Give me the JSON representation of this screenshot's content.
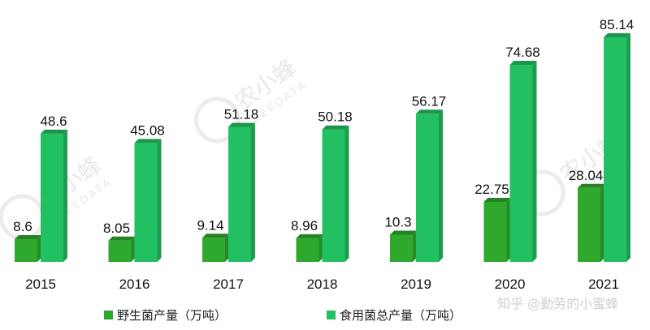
{
  "chart_data": {
    "type": "bar",
    "categories": [
      "2015",
      "2016",
      "2017",
      "2018",
      "2019",
      "2020",
      "2021"
    ],
    "series": [
      {
        "name": "野生菌产量（万吨）",
        "values": [
          8.6,
          8.05,
          9.14,
          8.96,
          10.3,
          22.75,
          28.04
        ],
        "labels": [
          "8.6",
          "8.05",
          "9.14",
          "8.96",
          "10.3",
          "22.75",
          "28.04"
        ],
        "color": "#2fa82e"
      },
      {
        "name": "食用菌总产量（万吨）",
        "values": [
          48.6,
          45.08,
          51.18,
          50.18,
          56.17,
          74.68,
          85.14
        ],
        "labels": [
          "48.6",
          "45.08",
          "51.18",
          "50.18",
          "56.17",
          "74.68",
          "85.14"
        ],
        "color": "#22c062"
      }
    ],
    "legend_position": "bottom",
    "grid": false,
    "ylim": [
      0,
      90
    ]
  },
  "watermark": {
    "text": "农小蜂",
    "subtext": "BEEDATA"
  },
  "credit": "知乎 @勤劳的小蜜蜂"
}
